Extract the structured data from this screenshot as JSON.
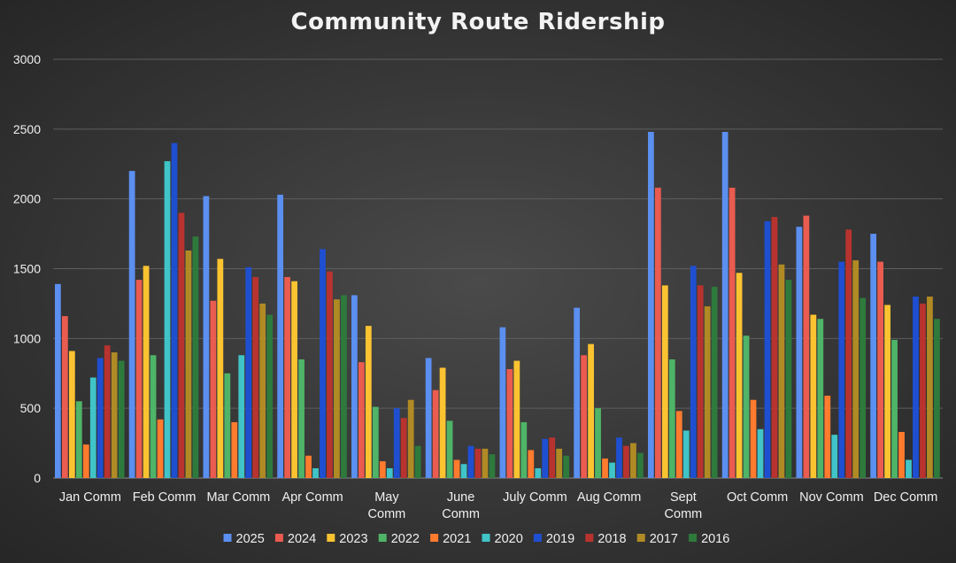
{
  "chart_data": {
    "type": "bar",
    "title": "Community Route Ridership",
    "xlabel": "",
    "ylabel": "",
    "ylim": [
      0,
      3000
    ],
    "yticks": [
      0,
      500,
      1000,
      1500,
      2000,
      2500,
      3000
    ],
    "grid": true,
    "legend_position": "bottom",
    "categories": [
      [
        "Jan Comm"
      ],
      [
        "Feb Comm"
      ],
      [
        "Mar Comm"
      ],
      [
        "Apr Comm"
      ],
      [
        "May",
        "Comm"
      ],
      [
        "June",
        "Comm"
      ],
      [
        "July Comm"
      ],
      [
        "Aug Comm"
      ],
      [
        "Sept",
        "Comm"
      ],
      [
        "Oct Comm"
      ],
      [
        "Nov Comm"
      ],
      [
        "Dec Comm"
      ]
    ],
    "series": [
      {
        "name": "2025",
        "color": "#5b8ff0",
        "values": [
          1390,
          2200,
          2020,
          2030,
          1310,
          860,
          1080,
          1220,
          2480,
          2480,
          1800,
          1750
        ]
      },
      {
        "name": "2024",
        "color": "#ea5b50",
        "values": [
          1160,
          1420,
          1270,
          1440,
          830,
          630,
          780,
          880,
          2080,
          2080,
          1880,
          1550
        ]
      },
      {
        "name": "2023",
        "color": "#fcc331",
        "values": [
          910,
          1520,
          1570,
          1410,
          1090,
          790,
          840,
          960,
          1380,
          1470,
          1170,
          1240
        ]
      },
      {
        "name": "2022",
        "color": "#4fb467",
        "values": [
          550,
          880,
          750,
          850,
          510,
          410,
          400,
          500,
          850,
          1020,
          1140,
          990
        ]
      },
      {
        "name": "2021",
        "color": "#ff7b2e",
        "values": [
          240,
          420,
          400,
          160,
          120,
          130,
          200,
          140,
          480,
          560,
          590,
          330
        ]
      },
      {
        "name": "2020",
        "color": "#40c4c8",
        "values": [
          720,
          2270,
          880,
          70,
          70,
          100,
          70,
          110,
          340,
          350,
          310,
          130
        ]
      },
      {
        "name": "2019",
        "color": "#1f4fd1",
        "values": [
          860,
          2400,
          1510,
          1640,
          500,
          230,
          280,
          290,
          1520,
          1840,
          1550,
          1300
        ]
      },
      {
        "name": "2018",
        "color": "#b8332f",
        "values": [
          950,
          1900,
          1440,
          1480,
          430,
          210,
          290,
          230,
          1380,
          1870,
          1780,
          1250
        ]
      },
      {
        "name": "2017",
        "color": "#b08a24",
        "values": [
          900,
          1630,
          1250,
          1280,
          560,
          210,
          210,
          250,
          1230,
          1530,
          1560,
          1300
        ]
      },
      {
        "name": "2016",
        "color": "#2e7a3c",
        "values": [
          840,
          1730,
          1170,
          1310,
          230,
          170,
          160,
          180,
          1370,
          1420,
          1290,
          1140
        ]
      }
    ]
  }
}
